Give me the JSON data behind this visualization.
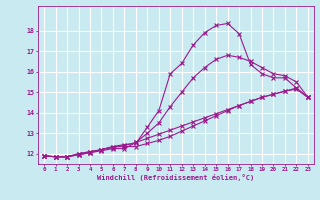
{
  "xlabel": "Windchill (Refroidissement éolien,°C)",
  "ylabel": "",
  "bg_color": "#c8eaf0",
  "line_color": "#9b1b8e",
  "grid_color": "#ffffff",
  "xlim": [
    -0.5,
    23.5
  ],
  "ylim": [
    11.5,
    19.2
  ],
  "yticks": [
    12,
    13,
    14,
    15,
    16,
    17,
    18
  ],
  "xticks": [
    0,
    1,
    2,
    3,
    4,
    5,
    6,
    7,
    8,
    9,
    10,
    11,
    12,
    13,
    14,
    15,
    16,
    17,
    18,
    19,
    20,
    21,
    22,
    23
  ],
  "series": [
    {
      "x": [
        0,
        1,
        2,
        3,
        4,
        5,
        6,
        7,
        8,
        9,
        10,
        11,
        12,
        13,
        14,
        15,
        16,
        17,
        18,
        19,
        20,
        21,
        22,
        23
      ],
      "y": [
        11.9,
        11.85,
        11.85,
        12.0,
        12.1,
        12.2,
        12.35,
        12.45,
        12.5,
        13.3,
        14.1,
        15.9,
        16.4,
        17.3,
        17.9,
        18.25,
        18.35,
        17.85,
        16.35,
        15.9,
        15.7,
        15.7,
        15.2,
        14.75
      ]
    },
    {
      "x": [
        0,
        1,
        2,
        3,
        4,
        5,
        6,
        7,
        8,
        9,
        10,
        11,
        12,
        13,
        14,
        15,
        16,
        17,
        18,
        19,
        20,
        21,
        22,
        23
      ],
      "y": [
        11.9,
        11.85,
        11.85,
        11.95,
        12.05,
        12.2,
        12.3,
        12.4,
        12.55,
        13.0,
        13.5,
        14.3,
        15.0,
        15.7,
        16.2,
        16.6,
        16.8,
        16.7,
        16.5,
        16.2,
        15.9,
        15.8,
        15.5,
        14.75
      ]
    },
    {
      "x": [
        0,
        1,
        2,
        3,
        4,
        5,
        6,
        7,
        8,
        9,
        10,
        11,
        12,
        13,
        14,
        15,
        16,
        17,
        18,
        19,
        20,
        21,
        22,
        23
      ],
      "y": [
        11.9,
        11.85,
        11.85,
        12.0,
        12.1,
        12.2,
        12.35,
        12.35,
        12.35,
        12.5,
        12.65,
        12.85,
        13.1,
        13.35,
        13.6,
        13.85,
        14.1,
        14.35,
        14.55,
        14.75,
        14.9,
        15.05,
        15.15,
        14.75
      ]
    },
    {
      "x": [
        0,
        1,
        2,
        3,
        4,
        5,
        6,
        7,
        8,
        9,
        10,
        11,
        12,
        13,
        14,
        15,
        16,
        17,
        18,
        19,
        20,
        21,
        22,
        23
      ],
      "y": [
        11.9,
        11.85,
        11.85,
        11.95,
        12.05,
        12.15,
        12.25,
        12.25,
        12.55,
        12.75,
        12.95,
        13.15,
        13.35,
        13.55,
        13.75,
        13.95,
        14.15,
        14.35,
        14.55,
        14.75,
        14.9,
        15.05,
        15.2,
        14.75
      ]
    }
  ]
}
